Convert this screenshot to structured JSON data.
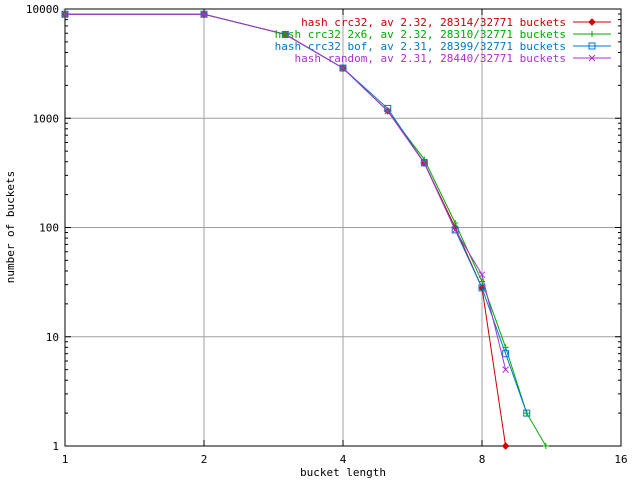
{
  "chart_data": {
    "type": "line",
    "title": "",
    "xlabel": "bucket length",
    "ylabel": "number of buckets",
    "xscale": "log2",
    "yscale": "log10",
    "xlim": [
      1,
      16
    ],
    "ylim": [
      1,
      10000
    ],
    "xticks": [
      1,
      2,
      4,
      8,
      16
    ],
    "xtick_labels": [
      "1",
      "2",
      "4",
      "8",
      "16"
    ],
    "yticks": [
      1,
      10,
      100,
      1000,
      10000
    ],
    "ytick_labels": [
      "1",
      "10",
      "100",
      "1000",
      "10000"
    ],
    "grid": true,
    "legend_position": "top-right",
    "series": [
      {
        "name": "hash crc32, av 2.32, 28314/32771 buckets",
        "color": "#cc0000",
        "marker": "diamond",
        "x": [
          1,
          2,
          3,
          4,
          5,
          6,
          7,
          8,
          9
        ],
        "y": [
          8950,
          8950,
          5850,
          2880,
          1165,
          390,
          100,
          28,
          1
        ]
      },
      {
        "name": "hash crc32 2x6, av 2.32, 28310/32771 buckets",
        "color": "#00aa00",
        "marker": "plus",
        "x": [
          1,
          2,
          3,
          4,
          5,
          6,
          7,
          8,
          9,
          10,
          11
        ],
        "y": [
          8950,
          8950,
          5850,
          2880,
          1165,
          420,
          110,
          32,
          8,
          2,
          1
        ]
      },
      {
        "name": "hash crc32 bof, av 2.31, 28399/32771 buckets",
        "color": "#0077cc",
        "marker": "square",
        "x": [
          1,
          2,
          3,
          4,
          5,
          6,
          7,
          8,
          9,
          10
        ],
        "y": [
          8950,
          8950,
          5850,
          2880,
          1230,
          390,
          95,
          28,
          7,
          2
        ]
      },
      {
        "name": "hash random, av 2.31, 28440/32771 buckets",
        "color": "#aa33cc",
        "marker": "x",
        "x": [
          1,
          2,
          3,
          4,
          5,
          6,
          7,
          8,
          9
        ],
        "y": [
          8950,
          8950,
          5850,
          2880,
          1165,
          390,
          95,
          37,
          5
        ]
      }
    ]
  }
}
